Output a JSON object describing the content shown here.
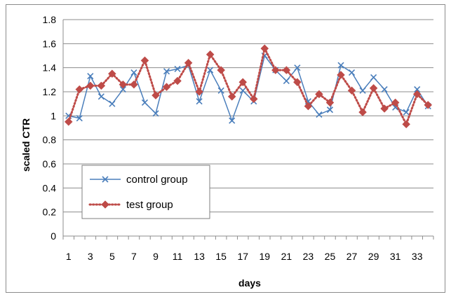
{
  "chart_data": {
    "type": "line",
    "xlabel": "days",
    "ylabel": "scaled CTR",
    "ylim": [
      0,
      1.8
    ],
    "yticks": [
      "0",
      "0.2",
      "0.4",
      "0.6",
      "0.8",
      "1",
      "1.2",
      "1.4",
      "1.6",
      "1.8"
    ],
    "xticks": [
      "1",
      "3",
      "5",
      "7",
      "9",
      "11",
      "13",
      "15",
      "17",
      "19",
      "21",
      "23",
      "25",
      "27",
      "29",
      "31",
      "33"
    ],
    "grid": "horizontal",
    "legend_position": "lower-left",
    "x": [
      1,
      2,
      3,
      4,
      5,
      6,
      7,
      8,
      9,
      10,
      11,
      12,
      13,
      14,
      15,
      16,
      17,
      18,
      19,
      20,
      21,
      22,
      23,
      24,
      25,
      26,
      27,
      28,
      29,
      30,
      31,
      32,
      33,
      34
    ],
    "series": [
      {
        "name": "control group",
        "color": "#4a7ebb",
        "line_style": "solid",
        "marker": "x",
        "values": [
          1.0,
          0.98,
          1.33,
          1.16,
          1.1,
          1.22,
          1.36,
          1.11,
          1.02,
          1.37,
          1.39,
          1.42,
          1.12,
          1.38,
          1.21,
          0.96,
          1.21,
          1.12,
          1.5,
          1.38,
          1.29,
          1.4,
          1.12,
          1.01,
          1.05,
          1.42,
          1.36,
          1.21,
          1.32,
          1.22,
          1.07,
          1.03,
          1.22,
          1.08
        ]
      },
      {
        "name": "test group",
        "color": "#be4b48",
        "line_style": "dotted",
        "marker": "diamond",
        "values": [
          0.95,
          1.22,
          1.25,
          1.25,
          1.35,
          1.26,
          1.26,
          1.46,
          1.17,
          1.24,
          1.29,
          1.44,
          1.2,
          1.51,
          1.38,
          1.16,
          1.28,
          1.14,
          1.56,
          1.38,
          1.38,
          1.28,
          1.08,
          1.18,
          1.11,
          1.34,
          1.21,
          1.03,
          1.23,
          1.06,
          1.11,
          0.93,
          1.18,
          1.09
        ]
      }
    ]
  }
}
